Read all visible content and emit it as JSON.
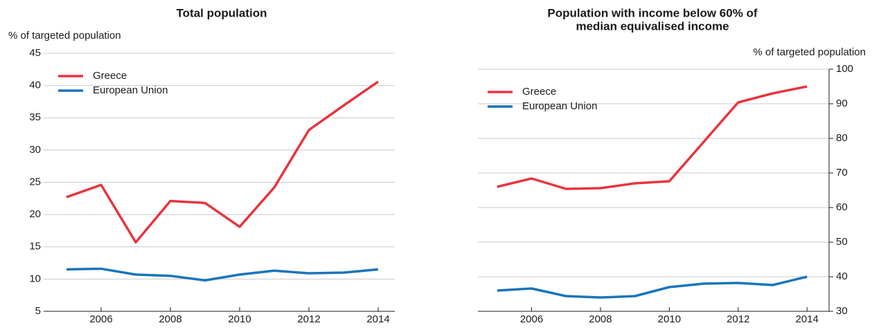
{
  "chart_data": [
    {
      "type": "line",
      "title": [
        "Total population"
      ],
      "y_label": "% of targeted population",
      "x": [
        2005,
        2006,
        2007,
        2008,
        2009,
        2010,
        2011,
        2012,
        2013,
        2014
      ],
      "xlim": [
        2004.34,
        2014.48
      ],
      "xticks": [
        2006,
        2008,
        2010,
        2012,
        2014
      ],
      "ylim": [
        5,
        45
      ],
      "yticks": [
        5,
        10,
        15,
        20,
        25,
        30,
        35,
        40,
        45
      ],
      "grid": true,
      "legend": "upper left",
      "series": [
        {
          "name": "Greece",
          "color": "#e8343e",
          "values": [
            22.7,
            24.6,
            15.7,
            22.1,
            21.8,
            18.1,
            24.2,
            33.1,
            36.9,
            40.6
          ]
        },
        {
          "name": "European Union",
          "color": "#1a75bb",
          "values": [
            11.5,
            11.6,
            10.7,
            10.5,
            9.8,
            10.7,
            11.3,
            10.9,
            11.0,
            11.5
          ]
        }
      ]
    },
    {
      "type": "line",
      "title": [
        "Population with income below 60% of",
        "median equivalised income"
      ],
      "y_label": "% of targeted population",
      "x": [
        2005,
        2006,
        2007,
        2008,
        2009,
        2010,
        2011,
        2012,
        2013,
        2014
      ],
      "xlim": [
        2004.44,
        2014.64
      ],
      "xticks": [
        2006,
        2008,
        2010,
        2012,
        2014
      ],
      "ylim": [
        30,
        100
      ],
      "yticks": [
        30,
        40,
        50,
        60,
        70,
        80,
        90,
        100
      ],
      "grid": true,
      "legend": "upper left",
      "series": [
        {
          "name": "Greece",
          "color": "#e8343e",
          "values": [
            66,
            68.4,
            65.4,
            65.6,
            67,
            67.6,
            79,
            90.4,
            93,
            95
          ]
        },
        {
          "name": "European Union",
          "color": "#1a75bb",
          "values": [
            36,
            36.6,
            34.4,
            34,
            34.4,
            37,
            38,
            38.2,
            37.6,
            40
          ]
        }
      ]
    }
  ]
}
